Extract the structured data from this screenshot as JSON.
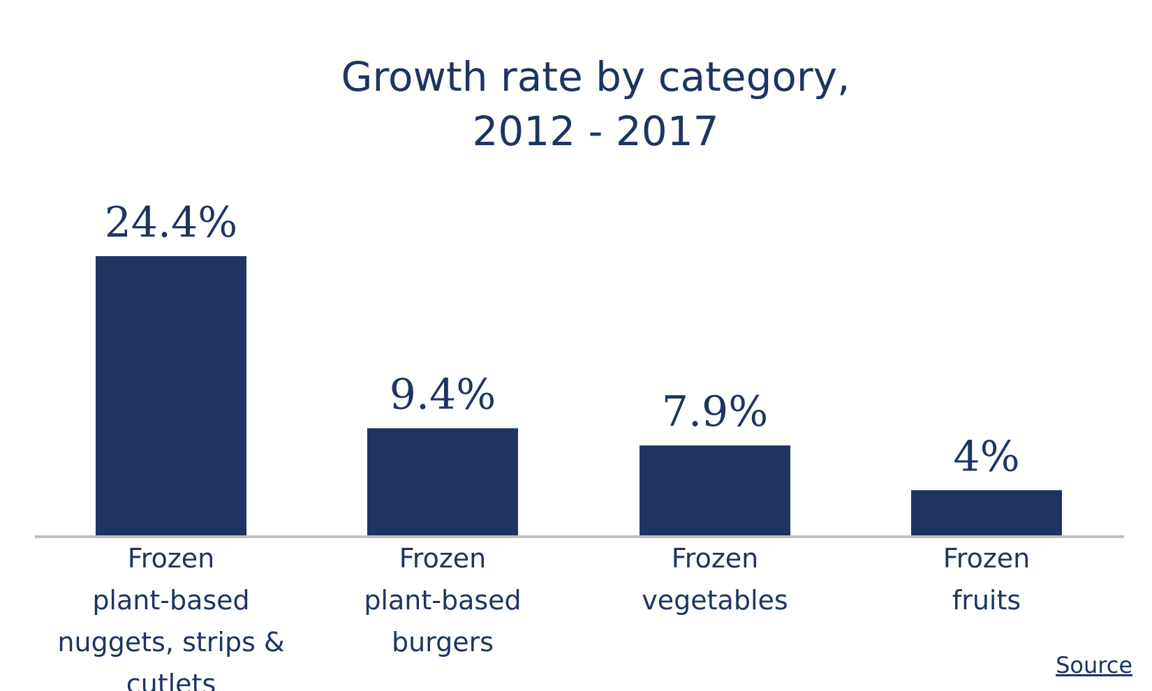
{
  "chart_data": {
    "type": "bar",
    "title_lines": [
      "Growth rate by category,",
      "2012 - 2017"
    ],
    "categories": [
      [
        "Frozen",
        "plant-based",
        "nuggets, strips &",
        "cutlets"
      ],
      [
        "Frozen",
        "plant-based",
        "burgers"
      ],
      [
        "Frozen",
        "vegetables"
      ],
      [
        "Frozen",
        "fruits"
      ]
    ],
    "values": [
      24.4,
      9.4,
      7.9,
      4
    ],
    "value_labels": [
      "24.4%",
      "9.4%",
      "7.9%",
      "4%"
    ],
    "ylim": [
      0,
      24.4
    ],
    "xlabel": "",
    "ylabel": "",
    "grid": false,
    "legend": "none"
  },
  "colors": {
    "bar": "#1d3560",
    "text": "#1d3560",
    "axis": "#bfbfbf"
  },
  "source_label": "Source"
}
